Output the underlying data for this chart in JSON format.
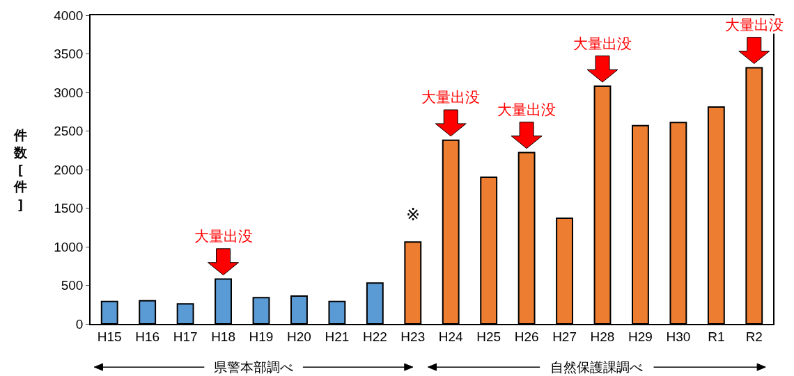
{
  "chart_data": {
    "type": "bar",
    "ylabel": "件数[件]",
    "categories": [
      "H15",
      "H16",
      "H17",
      "H18",
      "H19",
      "H20",
      "H21",
      "H22",
      "H23",
      "H24",
      "H25",
      "H26",
      "H27",
      "H28",
      "H29",
      "H30",
      "R1",
      "R2"
    ],
    "values": [
      290,
      300,
      260,
      580,
      340,
      360,
      290,
      530,
      1060,
      2380,
      1900,
      2220,
      1370,
      3080,
      2570,
      2610,
      2810,
      3320
    ],
    "colors": [
      "#5b9bd5",
      "#5b9bd5",
      "#5b9bd5",
      "#5b9bd5",
      "#5b9bd5",
      "#5b9bd5",
      "#5b9bd5",
      "#5b9bd5",
      "#ed7d31",
      "#ed7d31",
      "#ed7d31",
      "#ed7d31",
      "#ed7d31",
      "#ed7d31",
      "#ed7d31",
      "#ed7d31",
      "#ed7d31",
      "#ed7d31"
    ],
    "ylim": [
      0,
      4000
    ],
    "yticks": [
      0,
      500,
      1000,
      1500,
      2000,
      2500,
      3000,
      3500,
      4000
    ],
    "annotations": [
      {
        "text": "大量出没",
        "x": "H18",
        "y": 580
      },
      {
        "text": "※",
        "x": "H23",
        "y": 1060
      },
      {
        "text": "大量出没",
        "x": "H24",
        "y": 2380
      },
      {
        "text": "大量出没",
        "x": "H26",
        "y": 2220
      },
      {
        "text": "大量出没",
        "x": "H28",
        "y": 3080
      },
      {
        "text": "大量出没",
        "x": "R2",
        "y": 3320
      },
      "県警本部調べ",
      "自然保護課調べ"
    ]
  }
}
